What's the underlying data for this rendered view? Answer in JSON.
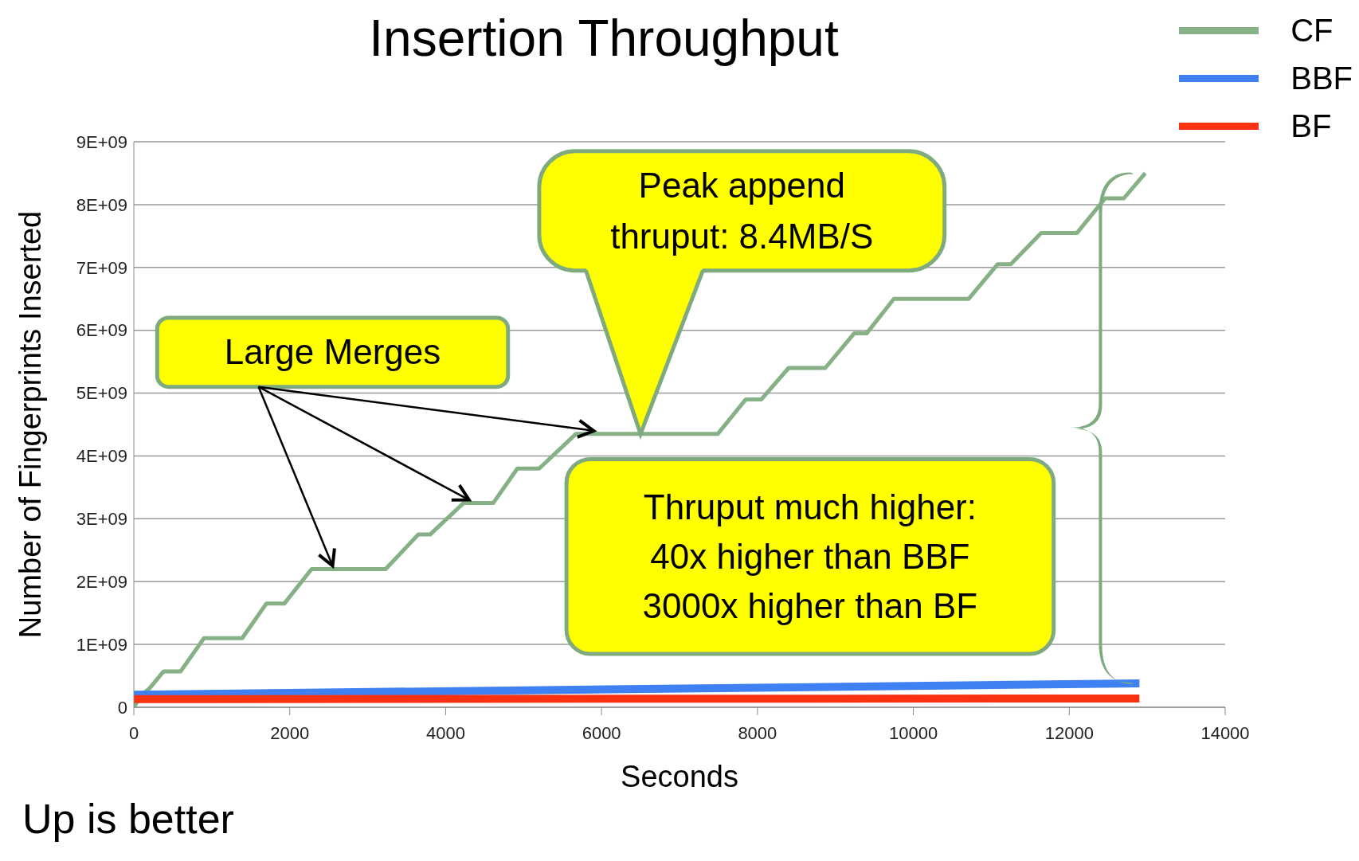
{
  "chart_data": {
    "type": "line",
    "title": "Insertion Throughput",
    "xlabel": "Seconds",
    "ylabel": "Number of Fingerprints Inserted",
    "xlim": [
      0,
      14000
    ],
    "xticks": [
      0,
      2000,
      4000,
      6000,
      8000,
      10000,
      12000,
      14000
    ],
    "ylim": [
      0,
      9000000000
    ],
    "yticks": [
      {
        "value": 0,
        "label": "0"
      },
      {
        "value": 1000000000,
        "label": "1E+09"
      },
      {
        "value": 2000000000,
        "label": "2E+09"
      },
      {
        "value": 3000000000,
        "label": "3E+09"
      },
      {
        "value": 4000000000,
        "label": "4E+09"
      },
      {
        "value": 5000000000,
        "label": "5E+09"
      },
      {
        "value": 6000000000,
        "label": "6E+09"
      },
      {
        "value": 7000000000,
        "label": "7E+09"
      },
      {
        "value": 8000000000,
        "label": "8E+09"
      },
      {
        "value": 9000000000,
        "label": "9E+09"
      }
    ],
    "grid": "y",
    "legend": "top right",
    "series": [
      {
        "name": "CF",
        "color": "#86b086",
        "x": [
          0,
          100,
          200,
          380,
          600,
          900,
          1390,
          1700,
          1930,
          2280,
          3230,
          3650,
          3800,
          4230,
          4610,
          4920,
          5200,
          5670,
          7490,
          7850,
          8050,
          8400,
          8870,
          9240,
          9400,
          9750,
          10710,
          11080,
          11250,
          11640,
          12100,
          12460,
          12700,
          12975
        ],
        "values": [
          0,
          200000000,
          300000000,
          570000000,
          570000000,
          1100000000,
          1100000000,
          1650000000,
          1650000000,
          2200000000,
          2200000000,
          2750000000,
          2750000000,
          3250000000,
          3250000000,
          3800000000,
          3800000000,
          4350000000,
          4350000000,
          4900000000,
          4900000000,
          5400000000,
          5400000000,
          5950000000,
          5950000000,
          6500000000,
          6500000000,
          7050000000,
          7050000000,
          7550000000,
          7550000000,
          8100000000,
          8100000000,
          8500000000
        ]
      },
      {
        "name": "BBF",
        "color": "#3f80f2",
        "x": [
          0,
          12900
        ],
        "values": [
          200000000,
          380000000
        ]
      },
      {
        "name": "BF",
        "color": "#fa3212",
        "x": [
          0,
          12900
        ],
        "values": [
          130000000,
          140000000
        ]
      }
    ],
    "annotations": [
      {
        "text": "Large Merges",
        "x": 2550,
        "y": 2200000000
      },
      "Peak append\nthruput: 8.4MB/S",
      "Thruput much higher:\n40x higher than BBF\n3000x higher than BF",
      "Up is better"
    ]
  }
}
